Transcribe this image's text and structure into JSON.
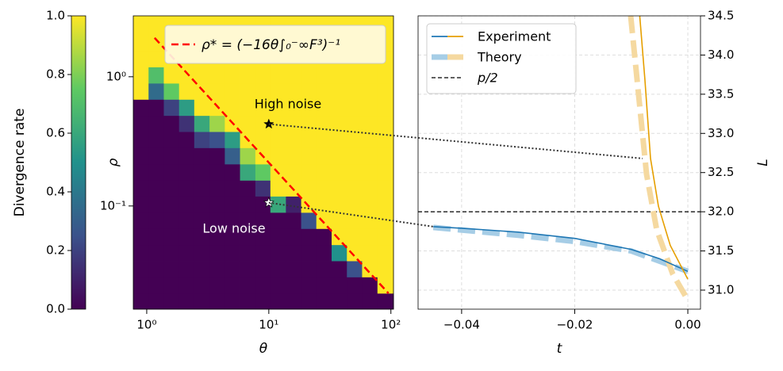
{
  "chart_data": [
    {
      "type": "colorbar",
      "label": "Divergence rate",
      "colormap": "viridis",
      "ylim": [
        0,
        1
      ],
      "yticks": [
        {
          "value": 0,
          "label": "0.0"
        },
        0.2,
        0.4,
        0.6,
        0.8,
        {
          "value": 1,
          "label": "1.0"
        }
      ]
    },
    {
      "type": "heatmap",
      "xlabel": "θ",
      "ylabel": "ρ",
      "xscale": "log",
      "yscale": "log",
      "colormap": "viridis",
      "xlim": [
        0.776,
        105
      ],
      "ylim": [
        0.0159,
        2.96
      ],
      "xticks": [
        {
          "value": 1,
          "label": "10⁰"
        },
        {
          "value": 10,
          "label": "10¹"
        },
        {
          "value": 100,
          "label": "10²"
        }
      ],
      "yticks": [
        {
          "value": 0.1,
          "label": "10⁻¹"
        },
        {
          "value": 1,
          "label": "10⁰"
        }
      ],
      "x_edges": [
        0.776,
        1.035,
        1.38,
        1.84,
        2.45,
        3.27,
        4.36,
        5.81,
        7.76,
        10.3,
        13.8,
        18.4,
        24.5,
        32.7,
        43.6,
        58.1,
        77.6,
        105
      ],
      "y_edges": [
        0.0159,
        0.0211,
        0.0282,
        0.0376,
        0.0501,
        0.0668,
        0.0891,
        0.119,
        0.158,
        0.211,
        0.282,
        0.376,
        0.501,
        0.668,
        0.891,
        1.19,
        1.58,
        2.11,
        2.96
      ],
      "z": [
        [
          0,
          0,
          0,
          0,
          0,
          0,
          0,
          0,
          0,
          0,
          0,
          0,
          0,
          0,
          0,
          0,
          0
        ],
        [
          0,
          0,
          0,
          0,
          0,
          0,
          0,
          0,
          0,
          0,
          0,
          0,
          0,
          0,
          0,
          0,
          1
        ],
        [
          0,
          0,
          0,
          0,
          0,
          0,
          0,
          0,
          0,
          0,
          0,
          0,
          0,
          0,
          0.25,
          1,
          1
        ],
        [
          0,
          0,
          0,
          0,
          0,
          0,
          0,
          0,
          0,
          0,
          0,
          0,
          0,
          0.5,
          1,
          1,
          1
        ],
        [
          0,
          0,
          0,
          0,
          0,
          0,
          0,
          0,
          0,
          0,
          0,
          0,
          0,
          1,
          1,
          1,
          1
        ],
        [
          0,
          0,
          0,
          0,
          0,
          0,
          0,
          0,
          0,
          0,
          0,
          0.25,
          1,
          1,
          1,
          1,
          1
        ],
        [
          0,
          0,
          0,
          0,
          0,
          0,
          0,
          0,
          0,
          0.6,
          0.1,
          1,
          1,
          1,
          1,
          1,
          1
        ],
        [
          0,
          0,
          0,
          0,
          0,
          0,
          0,
          0,
          0.15,
          1,
          1,
          1,
          1,
          1,
          1,
          1,
          1
        ],
        [
          0,
          0,
          0,
          0,
          0,
          0,
          0,
          0.6,
          0.75,
          1,
          1,
          1,
          1,
          1,
          1,
          1,
          1
        ],
        [
          0,
          0,
          0,
          0,
          0,
          0,
          0.3,
          0.85,
          1,
          1,
          1,
          1,
          1,
          1,
          1,
          1,
          1
        ],
        [
          0,
          0,
          0,
          0,
          0.2,
          0.25,
          0.55,
          1,
          1,
          1,
          1,
          1,
          1,
          1,
          1,
          1,
          1
        ],
        [
          0,
          0,
          0,
          0.15,
          0.6,
          0.85,
          1,
          1,
          1,
          1,
          1,
          1,
          1,
          1,
          1,
          1,
          1
        ],
        [
          0,
          0,
          0.2,
          0.55,
          1,
          1,
          1,
          1,
          1,
          1,
          1,
          1,
          1,
          1,
          1,
          1,
          1
        ],
        [
          1,
          0.35,
          0.75,
          1,
          1,
          1,
          1,
          1,
          1,
          1,
          1,
          1,
          1,
          1,
          1,
          1,
          1
        ],
        [
          1,
          0.7,
          1,
          1,
          1,
          1,
          1,
          1,
          1,
          1,
          1,
          1,
          1,
          1,
          1,
          1,
          1
        ],
        [
          1,
          1,
          1,
          1,
          1,
          1,
          1,
          1,
          1,
          1,
          1,
          1,
          1,
          1,
          1,
          1,
          1
        ],
        [
          1,
          1,
          1,
          1,
          1,
          1,
          1,
          1,
          1,
          1,
          1,
          1,
          1,
          1,
          1,
          1,
          1
        ],
        [
          1,
          1,
          1,
          1,
          1,
          1,
          1,
          1,
          1,
          1,
          1,
          1,
          1,
          1,
          1,
          1,
          1
        ]
      ],
      "series": [
        {
          "name": "ρ* = (−16θ∫₀⁻∞F³)⁻¹",
          "color": "#ff0000",
          "style": "dashed",
          "x": [
            1.16,
            95.5
          ],
          "values": [
            2.0,
            0.0211
          ]
        }
      ],
      "points": [
        {
          "x": 10,
          "y": 0.43,
          "color": "#000000"
        },
        {
          "x": 10,
          "y": 0.106,
          "color": "#ffffff"
        }
      ],
      "annotations": [
        "High noise",
        "Low noise"
      ],
      "legend": "upper right"
    },
    {
      "type": "line",
      "xlabel": "t",
      "ylabel": "L",
      "yaxis": "right",
      "grid": true,
      "legend": "upper left",
      "xlim": [
        -0.0477,
        0.00224
      ],
      "ylim": [
        30.757,
        34.5
      ],
      "xticks": [
        {
          "value": -0.04,
          "label": "−0.04"
        },
        {
          "value": -0.02,
          "label": "−0.02"
        },
        {
          "value": 0,
          "label": "0.00"
        }
      ],
      "yticks": [
        {
          "value": 31,
          "label": "31.0"
        },
        31.5,
        {
          "value": 32,
          "label": "32.0"
        },
        32.5,
        {
          "value": 33,
          "label": "33.0"
        },
        33.5,
        {
          "value": 34,
          "label": "34.0"
        },
        34.5
      ],
      "series": [
        {
          "name": "Experiment",
          "style": "solid",
          "lines": [
            {
              "color": "#1f77b4",
              "x": [
                -0.045,
                -0.04,
                -0.03,
                -0.02,
                -0.01,
                -0.005,
                0
              ],
              "values": [
                31.81,
                31.79,
                31.74,
                31.66,
                31.52,
                31.4,
                31.24
              ]
            },
            {
              "color": "#e69f00",
              "x": [
                -0.0085,
                -0.0076,
                -0.0066,
                -0.0052,
                -0.0031,
                0
              ],
              "values": [
                34.5,
                33.69,
                32.68,
                32.07,
                31.57,
                31.14
              ]
            }
          ]
        },
        {
          "name": "Theory",
          "style": "dashed",
          "lines": [
            {
              "color": "#a6cde6",
              "x": [
                -0.045,
                -0.03,
                -0.02,
                -0.01,
                0
              ],
              "values": [
                31.8,
                31.7,
                31.62,
                31.5,
                31.24
              ]
            },
            {
              "color": "#f5d9a0",
              "x": [
                -0.0101,
                -0.0087,
                -0.0073,
                -0.0055,
                -0.0027,
                -0.0003
              ],
              "values": [
                34.5,
                33.49,
                32.48,
                31.77,
                31.21,
                30.91
              ]
            }
          ]
        }
      ],
      "reference": {
        "name": "p/2",
        "y": 32,
        "color": "#000000"
      },
      "connectors": [
        {
          "x": -0.008,
          "y": 32.68
        },
        {
          "x": -0.045,
          "y": 31.81
        }
      ]
    }
  ]
}
